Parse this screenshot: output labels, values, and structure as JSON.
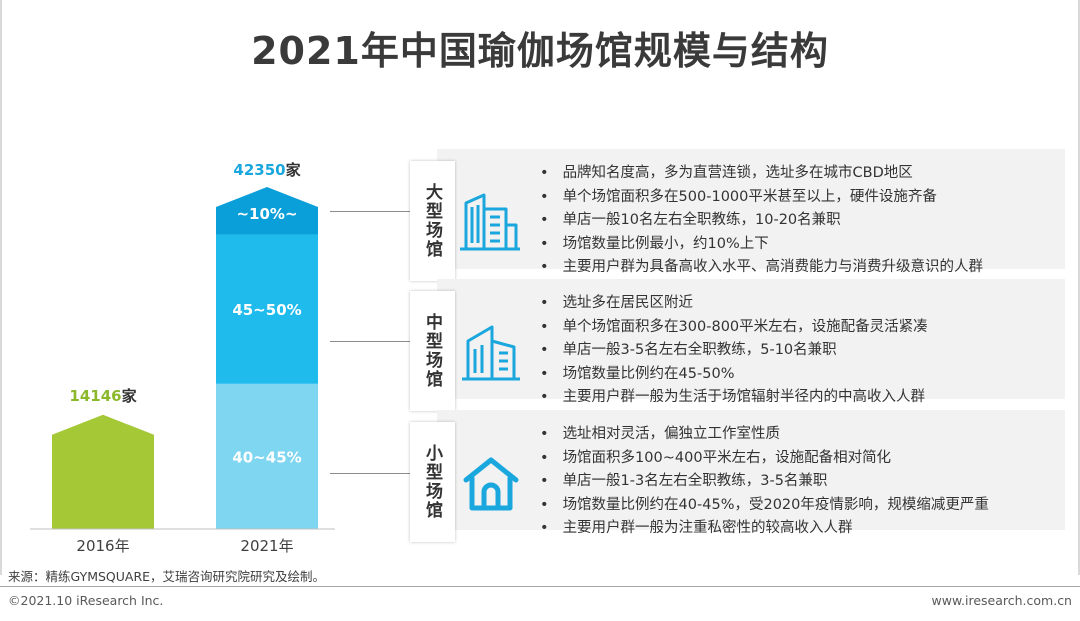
{
  "title": "2021年中国瑜伽场馆规模与结构",
  "chart_data": {
    "type": "bar",
    "categories": [
      "2016年",
      "2021年"
    ],
    "values": [
      14146,
      42350
    ],
    "unit": "家",
    "value_labels": [
      "14146",
      "42350"
    ],
    "stack_2021": [
      {
        "name": "小型场馆",
        "label": "40~45%",
        "color": "#7fd6f0"
      },
      {
        "name": "中型场馆",
        "label": "45~50%",
        "color": "#1fbbec"
      },
      {
        "name": "大型场馆",
        "label": "~10%~",
        "color": "#0a9fd8"
      }
    ],
    "colors": {
      "bar_2016": "#a5c836",
      "label_2016": "#8cb82c",
      "label_2021": "#1aa7dd"
    }
  },
  "panels": [
    {
      "name": "大型场馆",
      "icon": "office-building-icon",
      "items": [
        "品牌知名度高，多为直营连锁，选址多在城市CBD地区",
        "单个场馆面积多在500-1000平米甚至以上，硬件设施齐备",
        "单店一般10名左右全职教练，10-20名兼职",
        "场馆数量比例最小，约10%上下",
        "主要用户群为具备高收入水平、高消费能力与消费升级意识的人群"
      ]
    },
    {
      "name": "中型场馆",
      "icon": "apartment-building-icon",
      "items": [
        "选址多在居民区附近",
        "单个场馆面积多在300-800平米左右，设施配备灵活紧凑",
        "单店一般3-5名左右全职教练，5-10名兼职",
        "场馆数量比例约在45-50%",
        "主要用户群一般为生活于场馆辐射半径内的中高收入人群"
      ]
    },
    {
      "name": "小型场馆",
      "icon": "house-icon",
      "items": [
        "选址相对灵活，偏独立工作室性质",
        "场馆面积多100~400平米左右，设施配备相对简化",
        "单店一般1-3名左右全职教练，3-5名兼职",
        "场馆数量比例约在40-45%，受2020年疫情影响，规模缩减更严重",
        "主要用户群一般为注重私密性的较高收入人群"
      ]
    }
  ],
  "source": "来源：精练GYMSQUARE，艾瑞咨询研究院研究及绘制。",
  "footer": {
    "left": "©2021.10 iResearch Inc.",
    "right": "www.iresearch.com.cn"
  }
}
